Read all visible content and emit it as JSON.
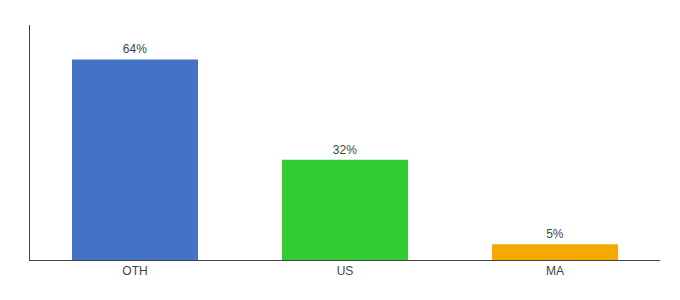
{
  "chart_data": {
    "type": "bar",
    "categories": [
      "OTH",
      "US",
      "MA"
    ],
    "values": [
      64,
      32,
      5
    ],
    "value_labels": [
      "64%",
      "32%",
      "5%"
    ],
    "colors": [
      "#4472c4",
      "#33cc33",
      "#f5a800"
    ],
    "ylim": [
      0,
      75
    ],
    "data_labels": true,
    "tick_labels": "x",
    "grid": false
  }
}
